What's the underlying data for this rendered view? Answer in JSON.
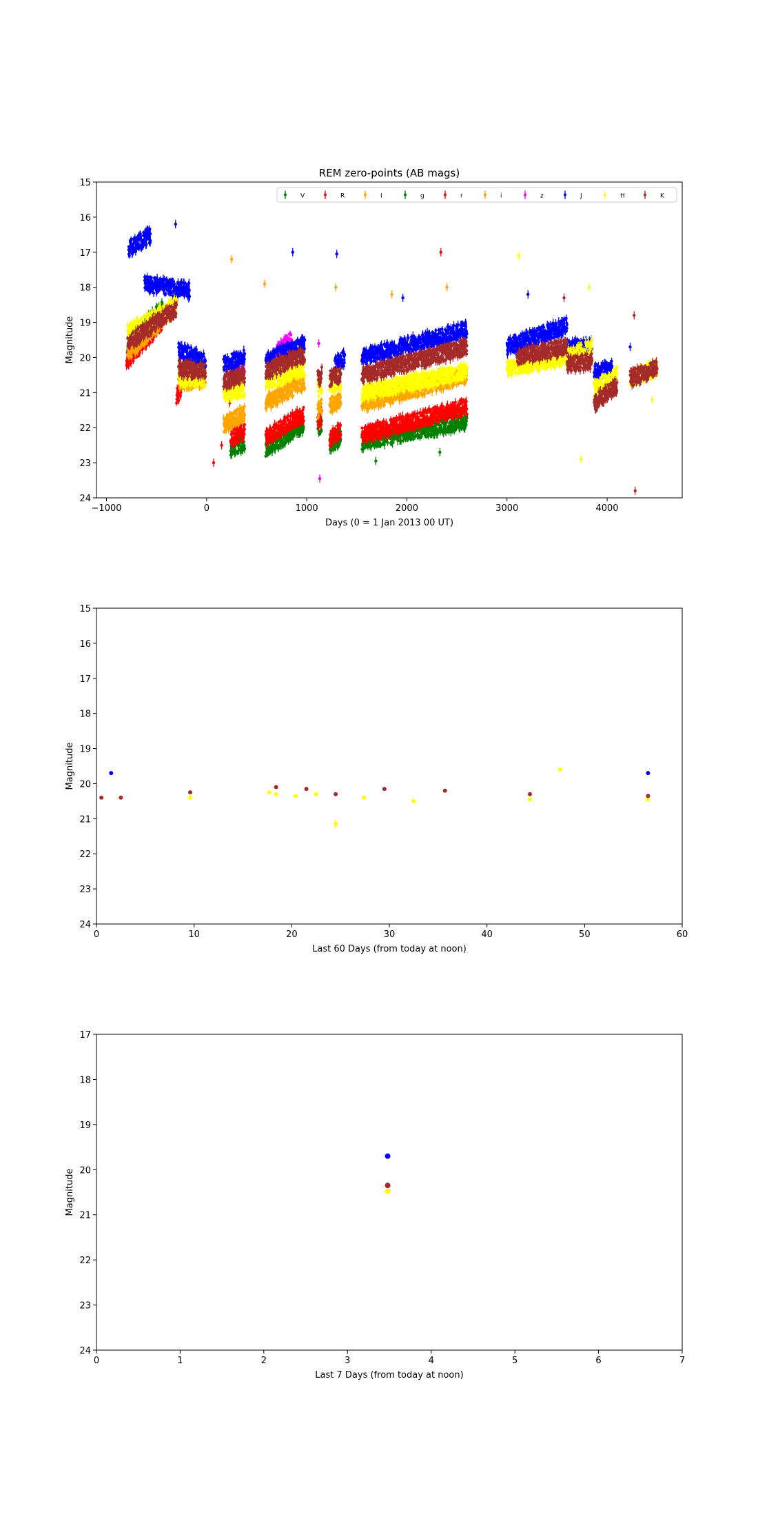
{
  "chart_data": [
    {
      "type": "scatter",
      "title": "REM zero-points (AB mags)",
      "xlabel": "Days (0 = 1 Jan 2013 00 UT)",
      "ylabel": "Magnitude",
      "xlim": [
        -1100,
        4750
      ],
      "ylim": [
        24,
        15
      ],
      "xticks": [
        -1000,
        0,
        1000,
        2000,
        3000,
        4000
      ],
      "yticks": [
        15,
        16,
        17,
        18,
        19,
        20,
        21,
        22,
        23,
        24
      ],
      "grid": false,
      "legend": "top-right",
      "marker": "errorbar",
      "series": [
        {
          "name": "V",
          "color": "#008000",
          "segments": [
            {
              "x": [
                -790,
                -440
              ],
              "y": [
                19.6,
                18.6
              ]
            },
            {
              "x": [
                240,
                380
              ],
              "y": [
                22.6,
                22.4
              ]
            },
            {
              "x": [
                590,
                970
              ],
              "y": [
                22.6,
                21.9
              ]
            },
            {
              "x": [
                1110,
                1150
              ],
              "y": [
                22.0,
                21.9
              ]
            },
            {
              "x": [
                1230,
                1340
              ],
              "y": [
                22.5,
                22.3
              ]
            },
            {
              "x": [
                1550,
                2600
              ],
              "y": [
                22.4,
                21.8
              ]
            }
          ],
          "points": [
            {
              "x": [
                1690,
                2330
              ],
              "y": [
                22.95,
                22.7
              ]
            }
          ]
        },
        {
          "name": "R",
          "color": "#ff0000",
          "segments": [
            {
              "x": [
                -800,
                -450
              ],
              "y": [
                20.1,
                19.0
              ]
            },
            {
              "x": [
                -300,
                -250
              ],
              "y": [
                21.1,
                20.9
              ]
            },
            {
              "x": [
                240,
                380
              ],
              "y": [
                22.3,
                22.1
              ]
            },
            {
              "x": [
                590,
                970
              ],
              "y": [
                22.3,
                21.6
              ]
            },
            {
              "x": [
                1110,
                1150
              ],
              "y": [
                21.8,
                21.7
              ]
            },
            {
              "x": [
                1230,
                1340
              ],
              "y": [
                22.3,
                22.1
              ]
            },
            {
              "x": [
                1550,
                2600
              ],
              "y": [
                22.2,
                21.4
              ]
            }
          ],
          "points": [
            {
              "x": [
                70,
                150,
                230,
                2340
              ],
              "y": [
                23.0,
                22.5,
                21.3,
                17.0
              ]
            }
          ]
        },
        {
          "name": "I",
          "color": "#ffa500",
          "segments": [
            {
              "x": [
                -790,
                -300
              ],
              "y": [
                19.9,
                18.5
              ]
            },
            {
              "x": [
                -280,
                -10
              ],
              "y": [
                20.7,
                20.6
              ]
            },
            {
              "x": [
                170,
                380
              ],
              "y": [
                21.9,
                21.6
              ]
            },
            {
              "x": [
                590,
                980
              ],
              "y": [
                21.3,
                20.7
              ]
            },
            {
              "x": [
                1110,
                1150
              ],
              "y": [
                21.5,
                21.4
              ]
            },
            {
              "x": [
                1230,
                1340
              ],
              "y": [
                21.4,
                21.2
              ]
            },
            {
              "x": [
                1550,
                2600
              ],
              "y": [
                21.3,
                20.5
              ]
            }
          ],
          "points": [
            {
              "x": [
                250,
                580,
                1290,
                2400,
                1850
              ],
              "y": [
                17.2,
                17.9,
                18.0,
                18.0,
                18.2
              ]
            }
          ]
        },
        {
          "name": "g",
          "color": "#008000",
          "segments": [],
          "points": []
        },
        {
          "name": "r",
          "color": "#ff0000",
          "segments": [],
          "points": []
        },
        {
          "name": "i",
          "color": "#ffa500",
          "segments": [],
          "points": []
        },
        {
          "name": "z",
          "color": "#ff00ff",
          "segments": [
            {
              "x": [
                220,
                380
              ],
              "y": [
                20.5,
                20.2
              ]
            },
            {
              "x": [
                700,
                850
              ],
              "y": [
                19.8,
                19.5
              ]
            }
          ],
          "points": [
            {
              "x": [
                1130,
                1120
              ],
              "y": [
                23.45,
                19.6
              ]
            }
          ]
        },
        {
          "name": "J",
          "color": "#0000ff",
          "segments": [
            {
              "x": [
                -780,
                -560
              ],
              "y": [
                16.9,
                16.5
              ]
            },
            {
              "x": [
                -620,
                -170
              ],
              "y": [
                17.9,
                18.1
              ]
            },
            {
              "x": [
                -280,
                -10
              ],
              "y": [
                19.8,
                20.1
              ]
            },
            {
              "x": [
                170,
                380
              ],
              "y": [
                20.2,
                20.0
              ]
            },
            {
              "x": [
                590,
                980
              ],
              "y": [
                20.1,
                19.6
              ]
            },
            {
              "x": [
                1280,
                1380
              ],
              "y": [
                20.2,
                20.0
              ]
            },
            {
              "x": [
                1550,
                2600
              ],
              "y": [
                20.0,
                19.2
              ]
            },
            {
              "x": [
                3000,
                3600
              ],
              "y": [
                19.7,
                19.1
              ]
            },
            {
              "x": [
                3600,
                3850
              ],
              "y": [
                19.7,
                19.7
              ]
            },
            {
              "x": [
                3870,
                4050
              ],
              "y": [
                20.4,
                20.3
              ]
            }
          ],
          "points": [
            {
              "x": [
                -310,
                860,
                1300,
                1960,
                3210,
                4230
              ],
              "y": [
                16.2,
                17.0,
                17.05,
                18.3,
                18.2,
                19.7
              ]
            }
          ]
        },
        {
          "name": "H",
          "color": "#ffff00",
          "segments": [
            {
              "x": [
                -790,
                -300
              ],
              "y": [
                19.3,
                18.5
              ]
            },
            {
              "x": [
                -280,
                -10
              ],
              "y": [
                20.6,
                20.6
              ]
            },
            {
              "x": [
                170,
                380
              ],
              "y": [
                21.0,
                20.9
              ]
            },
            {
              "x": [
                590,
                980
              ],
              "y": [
                20.7,
                20.3
              ]
            },
            {
              "x": [
                1110,
                1150
              ],
              "y": [
                20.9,
                20.8
              ]
            },
            {
              "x": [
                1230,
                1340
              ],
              "y": [
                20.8,
                20.7
              ]
            },
            {
              "x": [
                1550,
                2600
              ],
              "y": [
                21.0,
                20.4
              ]
            },
            {
              "x": [
                3000,
                3600
              ],
              "y": [
                20.3,
                20.0
              ]
            },
            {
              "x": [
                3600,
                3850
              ],
              "y": [
                20.0,
                19.7
              ]
            },
            {
              "x": [
                3870,
                4100
              ],
              "y": [
                20.9,
                20.5
              ]
            },
            {
              "x": [
                4230,
                4500
              ],
              "y": [
                20.6,
                20.3
              ]
            }
          ],
          "points": [
            {
              "x": [
                3120,
                3820,
                3740,
                4450
              ],
              "y": [
                17.1,
                18.0,
                22.9,
                21.2
              ]
            }
          ]
        },
        {
          "name": "K",
          "color": "#a52a2a",
          "segments": [
            {
              "x": [
                -790,
                -300
              ],
              "y": [
                19.6,
                18.6
              ]
            },
            {
              "x": [
                -280,
                -10
              ],
              "y": [
                20.3,
                20.4
              ]
            },
            {
              "x": [
                170,
                380
              ],
              "y": [
                20.7,
                20.5
              ]
            },
            {
              "x": [
                590,
                980
              ],
              "y": [
                20.4,
                19.9
              ]
            },
            {
              "x": [
                1110,
                1150
              ],
              "y": [
                20.6,
                20.5
              ]
            },
            {
              "x": [
                1230,
                1340
              ],
              "y": [
                20.6,
                20.5
              ]
            },
            {
              "x": [
                1550,
                2600
              ],
              "y": [
                20.5,
                19.7
              ]
            },
            {
              "x": [
                3100,
                3600
              ],
              "y": [
                20.0,
                19.7
              ]
            },
            {
              "x": [
                3600,
                3850
              ],
              "y": [
                20.2,
                20.1
              ]
            },
            {
              "x": [
                3870,
                4100
              ],
              "y": [
                21.3,
                20.8
              ]
            },
            {
              "x": [
                4230,
                4500
              ],
              "y": [
                20.6,
                20.3
              ]
            }
          ],
          "points": [
            {
              "x": [
                3570,
                4270,
                4280
              ],
              "y": [
                18.3,
                18.8,
                23.8
              ]
            }
          ]
        }
      ]
    },
    {
      "type": "scatter",
      "title": "",
      "xlabel": "Last 60 Days (from today at noon)",
      "ylabel": "Magnitude",
      "xlim": [
        0,
        60
      ],
      "ylim": [
        24,
        15
      ],
      "xticks": [
        0,
        10,
        20,
        30,
        40,
        50,
        60
      ],
      "yticks": [
        15,
        16,
        17,
        18,
        19,
        20,
        21,
        22,
        23,
        24
      ],
      "grid": false,
      "series": [
        {
          "color": "#0000ff",
          "x": [
            1.5,
            56.5
          ],
          "y": [
            19.7,
            19.7
          ]
        },
        {
          "color": "#ffff00",
          "x": [
            9.6,
            17.7,
            18.4,
            20.4,
            22.5,
            24.5,
            27.4,
            32.5,
            44.4,
            47.5,
            56.5
          ],
          "y": [
            20.4,
            20.25,
            20.3,
            20.35,
            20.3,
            21.15,
            20.4,
            20.5,
            20.45,
            19.6,
            20.45
          ]
        },
        {
          "color": "#a52a2a",
          "x": [
            0.5,
            2.5,
            9.6,
            18.4,
            21.5,
            24.5,
            29.5,
            35.7,
            44.4,
            56.5
          ],
          "y": [
            20.4,
            20.4,
            20.25,
            20.1,
            20.15,
            20.3,
            20.15,
            20.2,
            20.3,
            20.35
          ]
        }
      ]
    },
    {
      "type": "scatter",
      "title": "",
      "xlabel": "Last 7 Days (from today at noon)",
      "ylabel": "Magnitude",
      "xlim": [
        0,
        7
      ],
      "ylim": [
        24,
        17
      ],
      "xticks": [
        0,
        1,
        2,
        3,
        4,
        5,
        6,
        7
      ],
      "yticks": [
        17,
        18,
        19,
        20,
        21,
        22,
        23,
        24
      ],
      "grid": false,
      "series": [
        {
          "color": "#0000ff",
          "x": [
            3.48
          ],
          "y": [
            19.7
          ]
        },
        {
          "color": "#a52a2a",
          "x": [
            3.48
          ],
          "y": [
            20.35
          ]
        },
        {
          "color": "#ffff00",
          "x": [
            3.48
          ],
          "y": [
            20.48
          ]
        }
      ]
    }
  ]
}
